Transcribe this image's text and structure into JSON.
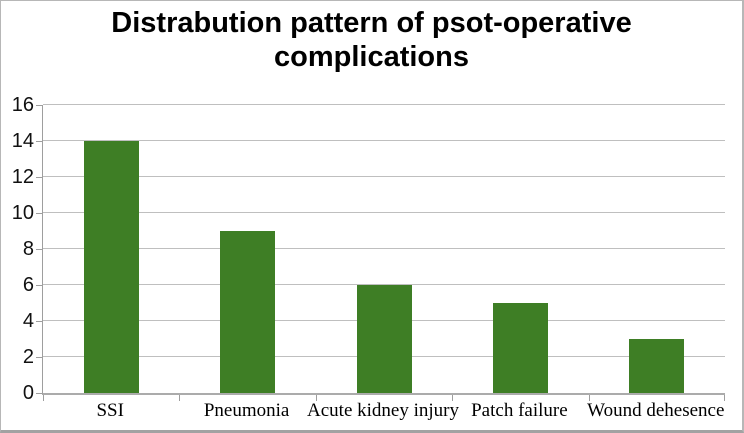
{
  "chart_data": {
    "type": "bar",
    "title": "Distrabution pattern of psot-operative complications",
    "categories": [
      "SSI",
      "Pneumonia",
      "Acute kidney injury",
      "Patch failure",
      "Wound dehesence"
    ],
    "values": [
      14,
      9,
      6,
      5,
      3
    ],
    "xlabel": "",
    "ylabel": "",
    "ylim": [
      0,
      16
    ],
    "yticks": [
      0,
      2,
      4,
      6,
      8,
      10,
      12,
      14,
      16
    ],
    "grid": true,
    "legend": "none",
    "bar_color": "#3e7e25",
    "gridline_color": "#bfbfbf",
    "axis_color": "#9e9e9e",
    "background_color": "#ffffff",
    "border_color": "#b7b7b7"
  }
}
